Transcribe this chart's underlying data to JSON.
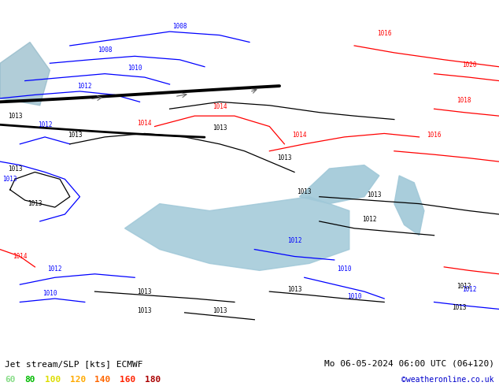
{
  "title_left": "Jet stream/SLP [kts] ECMWF",
  "title_right": "Mo 06-05-2024 06:00 UTC (06+120)",
  "credit": "©weatheronline.co.uk",
  "legend_values": [
    "60",
    "80",
    "100",
    "120",
    "140",
    "160",
    "180"
  ],
  "legend_colors": [
    "#88dd88",
    "#00bb00",
    "#dddd00",
    "#ffaa00",
    "#ff6600",
    "#ff2200",
    "#aa0000"
  ],
  "bg_color": "#b8e8a0",
  "sea_color": "#a0c8d8",
  "figsize": [
    6.34,
    4.9
  ],
  "dpi": 100,
  "bottom_bar_color": "#d0f0b0",
  "isobar_blue": "#0000ff",
  "isobar_red": "#ff0000",
  "isobar_black": "#000000",
  "title_fontsize": 8,
  "label_fontsize": 6
}
